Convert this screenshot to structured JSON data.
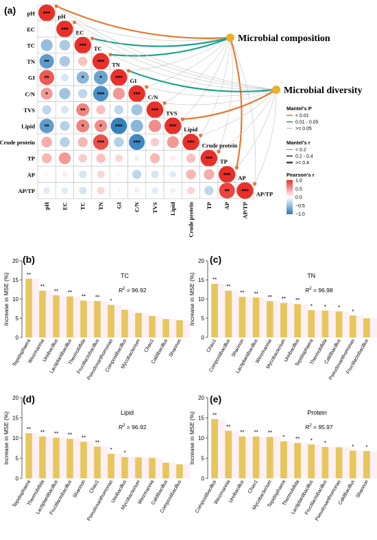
{
  "chart_data": [
    {
      "panel": "(a)",
      "type": "heatmap",
      "variables": [
        "pH",
        "EC",
        "TC",
        "TN",
        "GI",
        "C/N",
        "TVS",
        "Lipid",
        "Crude protein",
        "TP",
        "AP",
        "AP/TP"
      ],
      "pearson_lower": [
        [
          1
        ],
        [
          0.05,
          1
        ],
        [
          -0.5,
          -0.4,
          1
        ],
        [
          -0.75,
          -0.4,
          0.3,
          1
        ],
        [
          0.8,
          -0.2,
          -0.55,
          -0.7,
          1
        ],
        [
          0.5,
          -0.45,
          -0.3,
          -0.85,
          0.5,
          1
        ],
        [
          -0.3,
          -0.2,
          0.6,
          0.3,
          -0.3,
          -0.45,
          1
        ],
        [
          -0.75,
          -0.35,
          0.6,
          0.55,
          -0.95,
          -0.55,
          0.55,
          1
        ],
        [
          0.4,
          -0.35,
          0.35,
          0.85,
          -0.35,
          -0.9,
          0.25,
          0.5,
          1
        ],
        [
          0.35,
          0.5,
          0.25,
          0.3,
          0.2,
          -0.1,
          0.35,
          0.1,
          0.3,
          1
        ],
        [
          0.05,
          0.1,
          -0.2,
          0.2,
          0.05,
          -0.3,
          -0.2,
          -0.15,
          0.35,
          0.4,
          1
        ],
        [
          -0.15,
          -0.15,
          -0.2,
          0.2,
          -0.05,
          -0.1,
          -0.15,
          -0.1,
          0.2,
          -0.3,
          0.9,
          1
        ]
      ],
      "sig_lower": [
        [
          "***"
        ],
        [
          "",
          "***"
        ],
        [
          "",
          "",
          "***"
        ],
        [
          "**",
          "",
          "",
          "***"
        ],
        [
          "**",
          "",
          "*",
          "*",
          "***"
        ],
        [
          "*",
          "",
          "",
          "***",
          "",
          "***"
        ],
        [
          "",
          "",
          "**",
          "",
          "",
          "",
          "***"
        ],
        [
          "**",
          "",
          "*",
          "*",
          "***",
          "",
          "",
          "***"
        ],
        [
          "",
          "",
          "",
          "***",
          "",
          "***",
          "",
          "",
          "***"
        ],
        [
          "",
          "",
          "",
          "",
          "",
          "",
          "",
          "",
          "",
          "***"
        ],
        [
          "",
          "",
          "",
          "",
          "",
          "",
          "",
          "",
          "",
          "",
          "***"
        ],
        [
          "",
          "",
          "",
          "",
          "",
          "",
          "",
          "",
          "",
          "",
          "**",
          "***"
        ]
      ],
      "nodes": [
        "Microbial composition",
        "Microbial diversity"
      ],
      "mantel_links": [
        {
          "from": "Microbial composition",
          "to": "pH",
          "p": "< 0.01",
          "r": "0.2 - 0.4"
        },
        {
          "from": "Microbial composition",
          "to": "TC",
          "p": "0.01 - 0.05",
          "r": "0.2 - 0.4"
        },
        {
          "from": "Microbial composition",
          "to": "TN",
          "p": "0.01 - 0.05",
          "r": "0.2 - 0.4"
        },
        {
          "from": "Microbial composition",
          "to": "AP",
          "p": "< 0.01",
          "r": "0.2 - 0.4"
        },
        {
          "from": "Microbial diversity",
          "to": "GI",
          "p": "0.01 - 0.05",
          "r": "0.2 - 0.4"
        },
        {
          "from": "Microbial diversity",
          "to": "Lipid",
          "p": "< 0.01",
          "r": "0.2 - 0.4"
        }
      ],
      "legend": {
        "mantel_p_title": "Mantel's P",
        "mantel_p": [
          "< 0.01",
          "0.01 - 0.05",
          ">= 0.05"
        ],
        "mantel_p_colors": [
          "#e8762c",
          "#1aa28a",
          "#c8c8c8"
        ],
        "mantel_r_title": "Mantel's r",
        "mantel_r": [
          "< 0.2",
          "0.2 - 0.4",
          ">= 0.4"
        ],
        "pearson_title": "Pearson's r",
        "pearson_ticks": [
          "1.0",
          "0.5",
          "0.0",
          "−0.5",
          "−1.0"
        ],
        "neg_color": "#2b7bba",
        "pos_color": "#e8302a"
      }
    },
    {
      "panel": "(b)",
      "type": "bar",
      "title": "TC",
      "r2_prefix": "R",
      "r2_suffix": " = 96.92",
      "ylabel": "Increase in MSE (%)",
      "ylim": [
        0,
        20
      ],
      "yticks": [
        "0",
        "5",
        "10",
        "15",
        "20"
      ],
      "bar_color": "#e7c65c",
      "categories": [
        "Tepidisphaera",
        "Weizmannia",
        "Ureibacillus",
        "Lactiplantibacillus",
        "Thermobifida",
        "Fructilactobacillus",
        "Pseudoxanthomonas",
        "Compostibacillus",
        "Mycobacterium",
        "Chao1",
        "Caldibacillus",
        "Shannon"
      ],
      "values": [
        15.3,
        12.2,
        11.0,
        10.7,
        9.6,
        9.5,
        8.5,
        7.2,
        6.4,
        5.6,
        4.8,
        4.5
      ],
      "sig": [
        "**",
        "**",
        "**",
        "**",
        "**",
        "**",
        "*",
        "",
        "",
        "",
        "",
        ""
      ]
    },
    {
      "panel": "(c)",
      "type": "bar",
      "title": "TN",
      "r2_prefix": "R",
      "r2_suffix": " = 96.98",
      "ylabel": "Increase in MSE (%)",
      "ylim": [
        0,
        20
      ],
      "yticks": [
        "0",
        "5",
        "10",
        "15",
        "20"
      ],
      "bar_color": "#e7c65c",
      "categories": [
        "Chao1",
        "Compostibacillus",
        "Shannon",
        "Lactiplantibacillus",
        "Weizmannia",
        "Mycobacterium",
        "Ureibacillus",
        "Tepidisphaera",
        "Thermobifida",
        "Caldibacillus",
        "Pseudoxanthomonas",
        "Fructilactobacillus"
      ],
      "values": [
        14.0,
        12.2,
        10.6,
        10.4,
        9.5,
        9.0,
        8.7,
        7.1,
        7.0,
        6.8,
        5.7,
        5.0
      ],
      "sig": [
        "**",
        "**",
        "**",
        "**",
        "**",
        "**",
        "**",
        "*",
        "*",
        "*",
        "*",
        ""
      ]
    },
    {
      "panel": "(d)",
      "type": "bar",
      "title": "Lipid",
      "r2_prefix": "R",
      "r2_suffix": " = 96.92",
      "ylabel": "Increase in MSE (%)",
      "ylim": [
        0,
        20
      ],
      "yticks": [
        "0",
        "5",
        "10",
        "15",
        "20"
      ],
      "bar_color": "#e7c65c",
      "categories": [
        "Tepidisphaera",
        "Thermobifida",
        "Lactiplantibacillus",
        "Fructilactobacillus",
        "Shannon",
        "Chao1",
        "Pseudoxanthomonas",
        "Ureibacillus",
        "Mycobacterium",
        "Weizmannia",
        "Caldibacillus",
        "Compostibacillus"
      ],
      "values": [
        11.2,
        10.4,
        10.1,
        9.8,
        9.1,
        7.9,
        6.1,
        5.3,
        5.2,
        5.1,
        3.9,
        3.5
      ],
      "sig": [
        "**",
        "**",
        "**",
        "**",
        "**",
        "**",
        "*",
        "*",
        "",
        "",
        "",
        ""
      ]
    },
    {
      "panel": "(e)",
      "type": "bar",
      "title": "Protein",
      "r2_prefix": "R",
      "r2_suffix": " = 95.97",
      "ylabel": "Increase in MSE (%)",
      "ylim": [
        0,
        20
      ],
      "yticks": [
        "0",
        "5",
        "10",
        "15",
        "20"
      ],
      "bar_color": "#e7c65c",
      "categories": [
        "Compostibacillus",
        "Weizmannia",
        "Ureibacillus",
        "Chao1",
        "Mycobacterium",
        "Tepidisphaera",
        "Thermobifida",
        "Lactiplantibacillus",
        "Fructilactobacillus",
        "Pseudoxanthomonas",
        "Caldibacillus",
        "Shannon"
      ],
      "values": [
        14.7,
        11.8,
        10.4,
        10.4,
        10.3,
        9.2,
        8.8,
        8.4,
        7.8,
        7.7,
        6.9,
        6.8
      ],
      "sig": [
        "**",
        "**",
        "**",
        "**",
        "**",
        "*",
        "**",
        "*",
        "*",
        "",
        "*",
        "*"
      ]
    }
  ]
}
